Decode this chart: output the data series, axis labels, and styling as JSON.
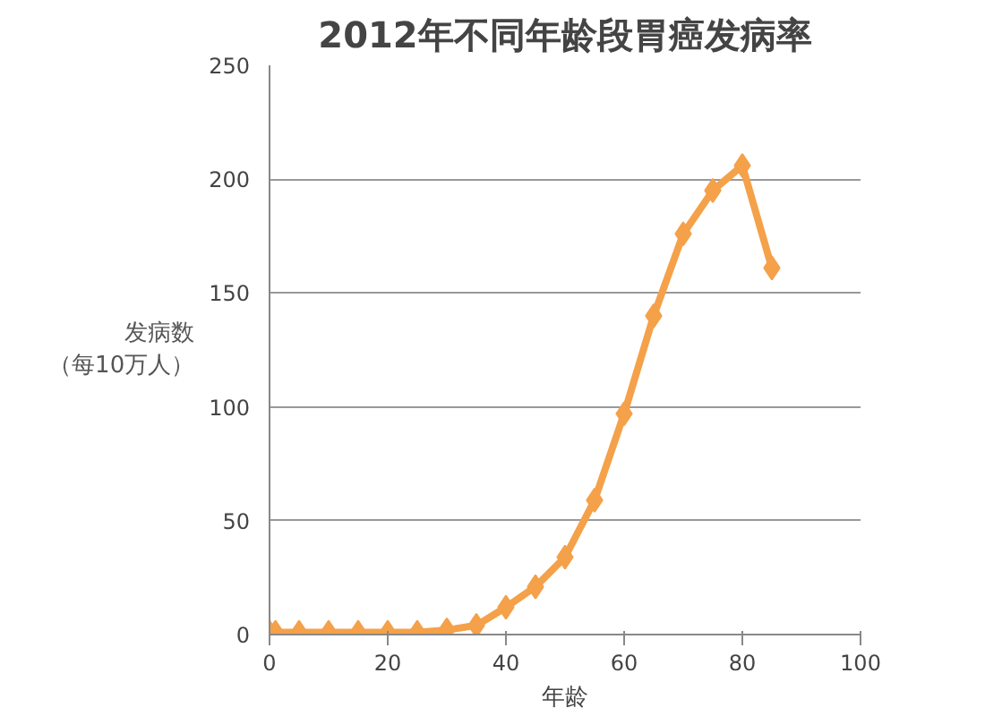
{
  "chart_data": {
    "type": "line",
    "title": "2012年不同年龄段胃癌发病率",
    "xlabel": "年龄",
    "ylabel": "发病数（每10万人）",
    "x": [
      0,
      1,
      5,
      10,
      15,
      20,
      25,
      30,
      35,
      40,
      45,
      50,
      55,
      60,
      65,
      70,
      75,
      80,
      85
    ],
    "series": [
      {
        "color": "#f4a14a",
        "values": [
          1,
          1,
          1,
          1,
          1,
          1,
          1,
          2,
          4,
          12,
          21,
          34,
          59,
          97,
          140,
          176,
          195,
          206,
          161
        ]
      }
    ],
    "xlim": [
      0,
      100
    ],
    "xticks": [
      0,
      20,
      40,
      60,
      80,
      100
    ],
    "ylim": [
      0,
      250
    ],
    "yticks": [
      0,
      50,
      100,
      150,
      200,
      250
    ],
    "grid": "y",
    "marker": "diamond",
    "line_style": "solid"
  }
}
